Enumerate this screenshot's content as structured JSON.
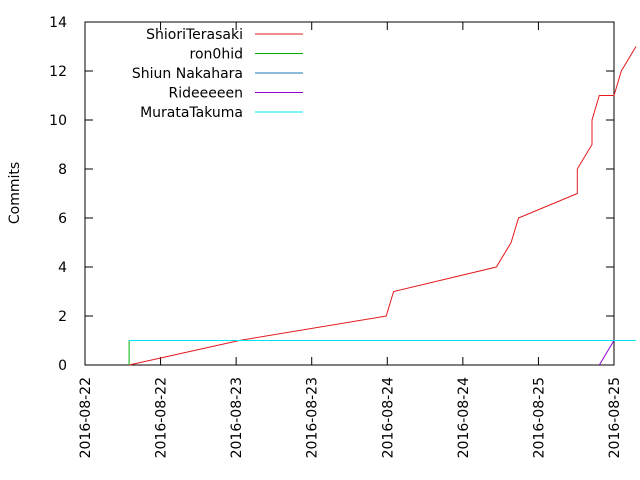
{
  "chart_data": {
    "type": "line",
    "ylabel": "Commits",
    "ylim": [
      0,
      14
    ],
    "xlim": [
      "2016-08-22 00:00",
      "2016-08-25 00:00"
    ],
    "yticks": [
      "0",
      "2",
      "4",
      "6",
      "8",
      "10",
      "12",
      "14"
    ],
    "xticks": [
      "2016-08-22",
      "2016-08-22",
      "2016-08-23",
      "2016-08-23",
      "2016-08-24",
      "2016-08-24",
      "2016-08-25",
      "2016-08-25"
    ],
    "legend_position": "top-left",
    "grid": false,
    "series": [
      {
        "name": "ShioriTerasaki",
        "color": "#e41a1c",
        "points": [
          [
            "2016-08-22 06:00",
            0
          ],
          [
            "2016-08-22 21:00",
            1
          ],
          [
            "2016-08-23 17:00",
            2
          ],
          [
            "2016-08-23 18:00",
            3
          ],
          [
            "2016-08-24 08:00",
            4
          ],
          [
            "2016-08-24 10:00",
            5
          ],
          [
            "2016-08-24 11:00",
            6
          ],
          [
            "2016-08-24 19:00",
            7
          ],
          [
            "2016-08-24 19:00",
            8
          ],
          [
            "2016-08-24 21:00",
            9
          ],
          [
            "2016-08-24 21:00",
            10
          ],
          [
            "2016-08-24 22:00",
            11
          ],
          [
            "2016-08-25 00:00",
            11
          ],
          [
            "2016-08-25 01:00",
            12
          ],
          [
            "2016-08-25 03:00",
            13
          ]
        ]
      },
      {
        "name": "ron0hid",
        "color": "#00b000",
        "points": [
          [
            "2016-08-22 06:00",
            0
          ],
          [
            "2016-08-22 06:00",
            1
          ]
        ]
      },
      {
        "name": "Shiun Nakahara",
        "color": "#1f78b4",
        "points": [
          [
            "2016-08-22 06:00",
            1
          ],
          [
            "2016-08-25 03:00",
            1
          ]
        ]
      },
      {
        "name": "Rideeeeen",
        "color": "#9400d3",
        "points": [
          [
            "2016-08-24 22:00",
            0
          ],
          [
            "2016-08-25 00:00",
            1
          ]
        ]
      },
      {
        "name": "MurataTakuma",
        "color": "#00e5ee",
        "points": [
          [
            "2016-08-22 06:00",
            1
          ],
          [
            "2016-08-25 03:00",
            1
          ]
        ]
      }
    ]
  }
}
